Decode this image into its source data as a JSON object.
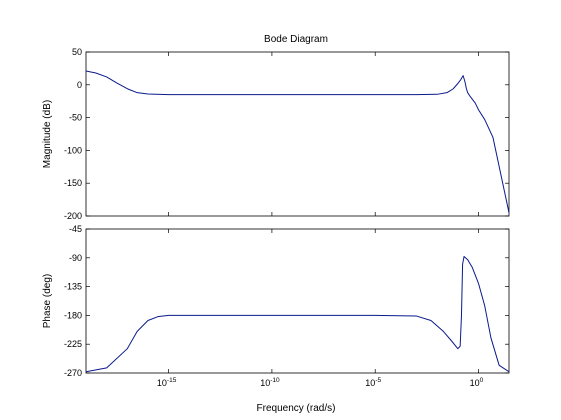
{
  "chart_data": {
    "type": "line",
    "title": "Bode Diagram",
    "xlabel": "Frequency  (rad/s)",
    "xscale": "log",
    "xlim": [
      1e-19,
      30
    ],
    "x_ticks": [
      {
        "value": 1e-15,
        "base": "10",
        "exp": "-15"
      },
      {
        "value": 1e-10,
        "base": "10",
        "exp": "-10"
      },
      {
        "value": 1e-05,
        "base": "10",
        "exp": "-5"
      },
      {
        "value": 1,
        "base": "10",
        "exp": "0"
      }
    ],
    "grid": false,
    "line_color": "#0a1a8c",
    "subplots": [
      {
        "name": "magnitude",
        "ylabel": "Magnitude (dB)",
        "ylim": [
          -200,
          50
        ],
        "yticks": [
          50,
          0,
          -50,
          -100,
          -150,
          -200
        ],
        "series": [
          {
            "x": [
              1e-19,
              3e-19,
              1e-18,
              3e-18,
              1e-17,
              3e-17,
              1e-16,
              1e-15,
              1e-10,
              1e-05,
              0.001,
              0.01,
              0.03,
              0.06,
              0.1,
              0.14,
              0.18,
              0.22,
              0.26,
              0.3,
              0.4,
              0.5,
              0.7,
              1,
              2,
              5,
              30
            ],
            "y": [
              21,
              18,
              12,
              3,
              -6,
              -12,
              -14,
              -15,
              -15,
              -15,
              -15,
              -14.5,
              -12,
              -6,
              2,
              8,
              14,
              5,
              -6,
              -12,
              -18,
              -22,
              -28,
              -38,
              -53,
              -80,
              -195
            ]
          }
        ]
      },
      {
        "name": "phase",
        "ylabel": "Phase (deg)",
        "ylim": [
          -270,
          -45
        ],
        "yticks": [
          -45,
          -90,
          -135,
          -180,
          -225,
          -270
        ],
        "series": [
          {
            "x": [
              1e-19,
              1e-18,
              1e-17,
              3e-17,
              1e-16,
              3e-16,
              1e-15,
              1e-14,
              1e-10,
              1e-05,
              0.001,
              0.005,
              0.02,
              0.05,
              0.1,
              0.13,
              0.15,
              0.17,
              0.2,
              0.3,
              0.5,
              1,
              2,
              4,
              10,
              30
            ],
            "y": [
              -268,
              -262,
              -232,
              -205,
              -188,
              -182,
              -180,
              -180,
              -180,
              -180,
              -181,
              -188,
              -205,
              -220,
              -232,
              -228,
              -180,
              -100,
              -88,
              -93,
              -105,
              -130,
              -165,
              -215,
              -258,
              -268
            ]
          }
        ]
      }
    ]
  }
}
